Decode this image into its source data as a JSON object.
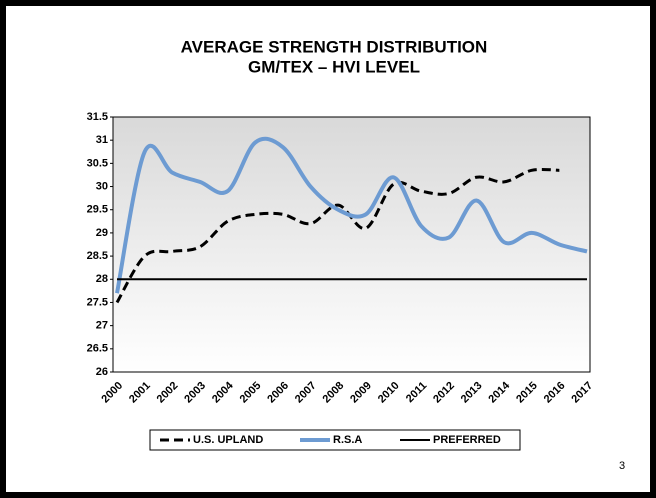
{
  "chart_data": {
    "type": "line",
    "title": "AVERAGE STRENGTH DISTRIBUTION",
    "subtitle": "GM/TEX – HVI LEVEL",
    "categories": [
      "2000",
      "2001",
      "2002",
      "2003",
      "2004",
      "2005",
      "2006",
      "2007",
      "2008",
      "2009",
      "2010",
      "2011",
      "2012",
      "2013",
      "2014",
      "2015",
      "2016",
      "2017"
    ],
    "series": [
      {
        "name": "U.S. UPLAND",
        "color": "#000000",
        "dash": true,
        "values": [
          27.5,
          28.5,
          28.6,
          28.7,
          29.25,
          29.4,
          29.4,
          29.2,
          29.6,
          29.1,
          30.05,
          29.9,
          29.85,
          30.2,
          30.1,
          30.35,
          30.35,
          null
        ]
      },
      {
        "name": "R.S.A",
        "color": "#6d9bd2",
        "dash": false,
        "values": [
          27.7,
          30.75,
          30.3,
          30.1,
          29.9,
          30.95,
          30.85,
          30.0,
          29.5,
          29.4,
          30.2,
          29.15,
          28.9,
          29.7,
          28.8,
          29.0,
          28.75,
          28.6
        ]
      },
      {
        "name": "PREFERRED",
        "color": "#000000",
        "dash": false,
        "values": [
          28,
          28,
          28,
          28,
          28,
          28,
          28,
          28,
          28,
          28,
          28,
          28,
          28,
          28,
          28,
          28,
          28,
          28
        ]
      }
    ],
    "ylim": [
      26,
      31.5
    ],
    "yticks": [
      26,
      26.5,
      27,
      27.5,
      28,
      28.5,
      29,
      29.5,
      30,
      30.5,
      31,
      31.5
    ],
    "legend": "bottom",
    "page_number": "3"
  }
}
